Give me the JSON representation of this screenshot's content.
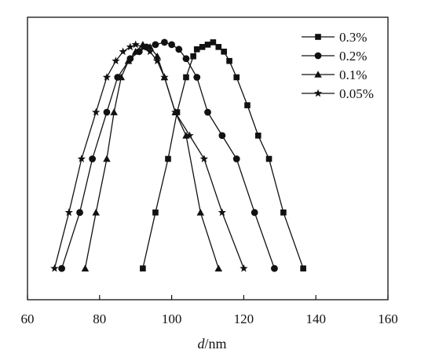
{
  "chart_data": {
    "type": "line",
    "xlabel_italic": "d",
    "xlabel_rest": "/nm",
    "ylabel": "",
    "xlim": [
      60,
      160
    ],
    "xticks": [
      60,
      80,
      100,
      120,
      140,
      160
    ],
    "ylim": [
      0,
      1.05
    ],
    "y_axis_tick_labels": false,
    "grid": false,
    "legend_position": "top-right",
    "series": [
      {
        "name": "0.3%",
        "marker": "square",
        "points": [
          [
            92,
            0.05
          ],
          [
            95.5,
            0.29
          ],
          [
            99,
            0.52
          ],
          [
            101.5,
            0.72
          ],
          [
            104,
            0.87
          ],
          [
            106,
            0.96
          ],
          [
            107,
            0.99
          ],
          [
            108.5,
            1.0
          ],
          [
            110,
            1.01
          ],
          [
            111.5,
            1.02
          ],
          [
            113,
            1.0
          ],
          [
            114.5,
            0.98
          ],
          [
            116,
            0.94
          ],
          [
            118,
            0.87
          ],
          [
            121,
            0.75
          ],
          [
            124,
            0.62
          ],
          [
            127,
            0.52
          ],
          [
            131,
            0.29
          ],
          [
            136.5,
            0.05
          ]
        ]
      },
      {
        "name": "0.2%",
        "marker": "circle",
        "points": [
          [
            69.5,
            0.05
          ],
          [
            74.5,
            0.29
          ],
          [
            78,
            0.52
          ],
          [
            82,
            0.72
          ],
          [
            85,
            0.87
          ],
          [
            88.5,
            0.95
          ],
          [
            91,
            0.98
          ],
          [
            93,
            1.0
          ],
          [
            95.5,
            1.01
          ],
          [
            98,
            1.02
          ],
          [
            100,
            1.01
          ],
          [
            102,
            0.99
          ],
          [
            104,
            0.95
          ],
          [
            107,
            0.87
          ],
          [
            110,
            0.72
          ],
          [
            114,
            0.62
          ],
          [
            118,
            0.52
          ],
          [
            123,
            0.29
          ],
          [
            128.5,
            0.05
          ]
        ]
      },
      {
        "name": "0.1%",
        "marker": "triangle",
        "points": [
          [
            76,
            0.05
          ],
          [
            79,
            0.29
          ],
          [
            82,
            0.52
          ],
          [
            84,
            0.72
          ],
          [
            86,
            0.87
          ],
          [
            88,
            0.94
          ],
          [
            90,
            0.98
          ],
          [
            92,
            1.01
          ],
          [
            94,
            1.0
          ],
          [
            96,
            0.96
          ],
          [
            98,
            0.87
          ],
          [
            101,
            0.72
          ],
          [
            104,
            0.62
          ],
          [
            108,
            0.29
          ],
          [
            113,
            0.05
          ]
        ]
      },
      {
        "name": "0.05%",
        "marker": "star",
        "points": [
          [
            67.5,
            0.05
          ],
          [
            71.5,
            0.29
          ],
          [
            75,
            0.52
          ],
          [
            79,
            0.72
          ],
          [
            82,
            0.87
          ],
          [
            84.5,
            0.94
          ],
          [
            86.5,
            0.98
          ],
          [
            88.5,
            1.0
          ],
          [
            90,
            1.01
          ],
          [
            92,
            1.0
          ],
          [
            94,
            0.98
          ],
          [
            96,
            0.94
          ],
          [
            98,
            0.87
          ],
          [
            101,
            0.72
          ],
          [
            105,
            0.62
          ],
          [
            109,
            0.52
          ],
          [
            114,
            0.29
          ],
          [
            120,
            0.05
          ]
        ]
      }
    ]
  }
}
